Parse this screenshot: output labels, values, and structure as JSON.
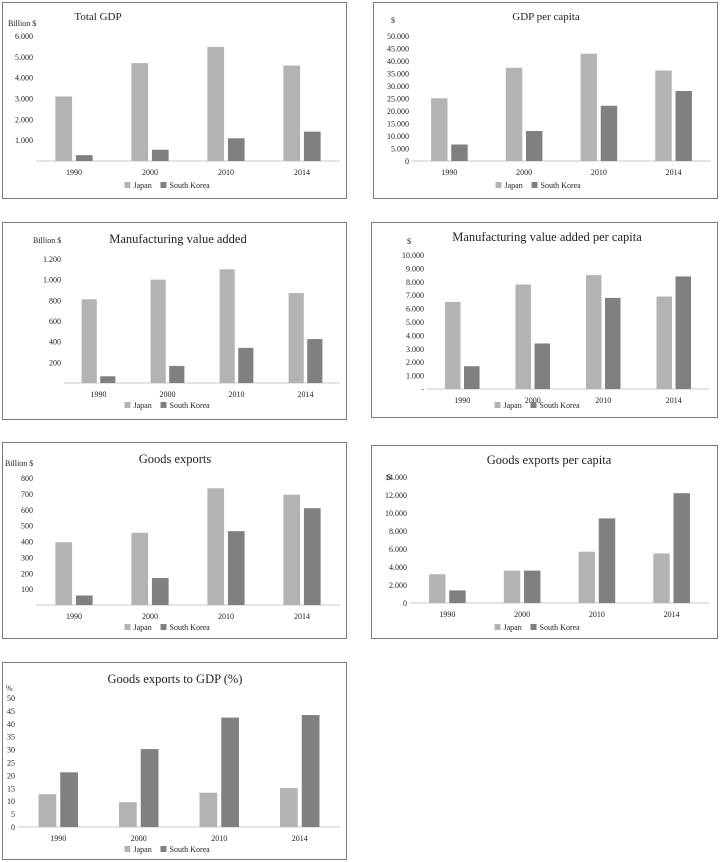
{
  "legend": {
    "japan": "Japan",
    "south_korea": "South Korea"
  },
  "colors": {
    "japan": "#b3b3b3",
    "south_korea": "#808080",
    "axis": "#c8c8c8",
    "border": "#7a7a7a"
  },
  "chart_data": [
    {
      "type": "bar",
      "title": "Total GDP",
      "unit": "Billion  $",
      "categories": [
        "1990",
        "2000",
        "2010",
        "2014"
      ],
      "series": [
        {
          "name": "Japan",
          "values": [
            3100,
            4700,
            5480,
            4580
          ]
        },
        {
          "name": "South Korea",
          "values": [
            280,
            540,
            1090,
            1410
          ]
        }
      ],
      "ylim": [
        0,
        6000
      ],
      "yticks": [
        1000,
        2000,
        3000,
        4000,
        5000,
        6000
      ],
      "ytick_labels": [
        "1.000",
        "2.000",
        "3.000",
        "4.000",
        "5.000",
        "6.000"
      ],
      "legend_position": "bottom"
    },
    {
      "type": "bar",
      "title": "GDP per capita",
      "unit": "$",
      "categories": [
        "1990",
        "2000",
        "2010",
        "2014"
      ],
      "series": [
        {
          "name": "Japan",
          "values": [
            25100,
            37300,
            42900,
            36200
          ]
        },
        {
          "name": "South Korea",
          "values": [
            6600,
            12000,
            22100,
            28000
          ]
        }
      ],
      "ylim": [
        0,
        50000
      ],
      "yticks": [
        0,
        5000,
        10000,
        15000,
        20000,
        25000,
        30000,
        35000,
        40000,
        45000,
        50000
      ],
      "ytick_labels": [
        "0",
        "5.000",
        "10.000",
        "15.000",
        "20.000",
        "25.000",
        "30.000",
        "35.000",
        "40.000",
        "45.000",
        "50.000"
      ],
      "legend_position": "bottom"
    },
    {
      "type": "bar",
      "title": "Manufacturing  value added",
      "unit": "Billion  $",
      "categories": [
        "1990",
        "2000",
        "2010",
        "2014"
      ],
      "series": [
        {
          "name": "Japan",
          "values": [
            810,
            1000,
            1100,
            870
          ]
        },
        {
          "name": "South Korea",
          "values": [
            65,
            165,
            340,
            425
          ]
        }
      ],
      "ylim": [
        0,
        1200
      ],
      "yticks": [
        200,
        400,
        600,
        800,
        1000,
        1200
      ],
      "ytick_labels": [
        "200",
        "400",
        "600",
        "800",
        "1.000",
        "1.200"
      ],
      "legend_position": "bottom"
    },
    {
      "type": "bar",
      "title": "Manufacturing  value added per capita",
      "unit": "$",
      "categories": [
        "1990",
        "2000",
        "2010",
        "2014"
      ],
      "series": [
        {
          "name": "Japan",
          "values": [
            6500,
            7800,
            8500,
            6900
          ]
        },
        {
          "name": "South Korea",
          "values": [
            1700,
            3400,
            6800,
            8400
          ]
        }
      ],
      "ylim": [
        0,
        10000
      ],
      "yticks": [
        0,
        1000,
        2000,
        3000,
        4000,
        5000,
        6000,
        7000,
        8000,
        9000,
        10000
      ],
      "ytick_labels": [
        "-",
        "1.000",
        "2.000",
        "3.000",
        "4.000",
        "5.000",
        "6.000",
        "7.000",
        "8.000",
        "9.000",
        "10.000"
      ],
      "legend_position": "bottom"
    },
    {
      "type": "bar",
      "title": "Goods exports",
      "unit": "Billion  $",
      "categories": [
        "1990",
        "2000",
        "2010",
        "2014"
      ],
      "series": [
        {
          "name": "Japan",
          "values": [
            395,
            455,
            735,
            695
          ]
        },
        {
          "name": "South Korea",
          "values": [
            60,
            170,
            465,
            610
          ]
        }
      ],
      "ylim": [
        0,
        800
      ],
      "yticks": [
        100,
        200,
        300,
        400,
        500,
        600,
        700,
        800
      ],
      "ytick_labels": [
        "100",
        "200",
        "300",
        "400",
        "500",
        "600",
        "700",
        "800"
      ],
      "legend_position": "bottom"
    },
    {
      "type": "bar",
      "title": "Goods exports per capita",
      "unit": "$",
      "categories": [
        "1990",
        "2000",
        "2010",
        "2014"
      ],
      "series": [
        {
          "name": "Japan",
          "values": [
            3200,
            3600,
            5700,
            5500
          ]
        },
        {
          "name": "South Korea",
          "values": [
            1400,
            3600,
            9400,
            12200
          ]
        }
      ],
      "ylim": [
        0,
        14000
      ],
      "yticks": [
        0,
        2000,
        4000,
        6000,
        8000,
        10000,
        12000,
        14000
      ],
      "ytick_labels": [
        "0",
        "2.000",
        "4.000",
        "6.000",
        "8.000",
        "10.000",
        "12.000",
        "14.000"
      ],
      "legend_position": "bottom"
    },
    {
      "type": "bar",
      "title": "Goods exports to GDP (%)",
      "unit": "%",
      "categories": [
        "1990",
        "2000",
        "2010",
        "2014"
      ],
      "series": [
        {
          "name": "Japan",
          "values": [
            12.7,
            9.6,
            13.3,
            15.1
          ]
        },
        {
          "name": "South Korea",
          "values": [
            21.2,
            30.2,
            42.4,
            43.4
          ]
        }
      ],
      "ylim": [
        0,
        50
      ],
      "yticks": [
        0,
        5,
        10,
        15,
        20,
        25,
        30,
        35,
        40,
        45,
        50
      ],
      "ytick_labels": [
        "0",
        "5",
        "10",
        "15",
        "20",
        "25",
        "30",
        "35",
        "40",
        "45",
        "50"
      ],
      "legend_position": "bottom"
    }
  ]
}
